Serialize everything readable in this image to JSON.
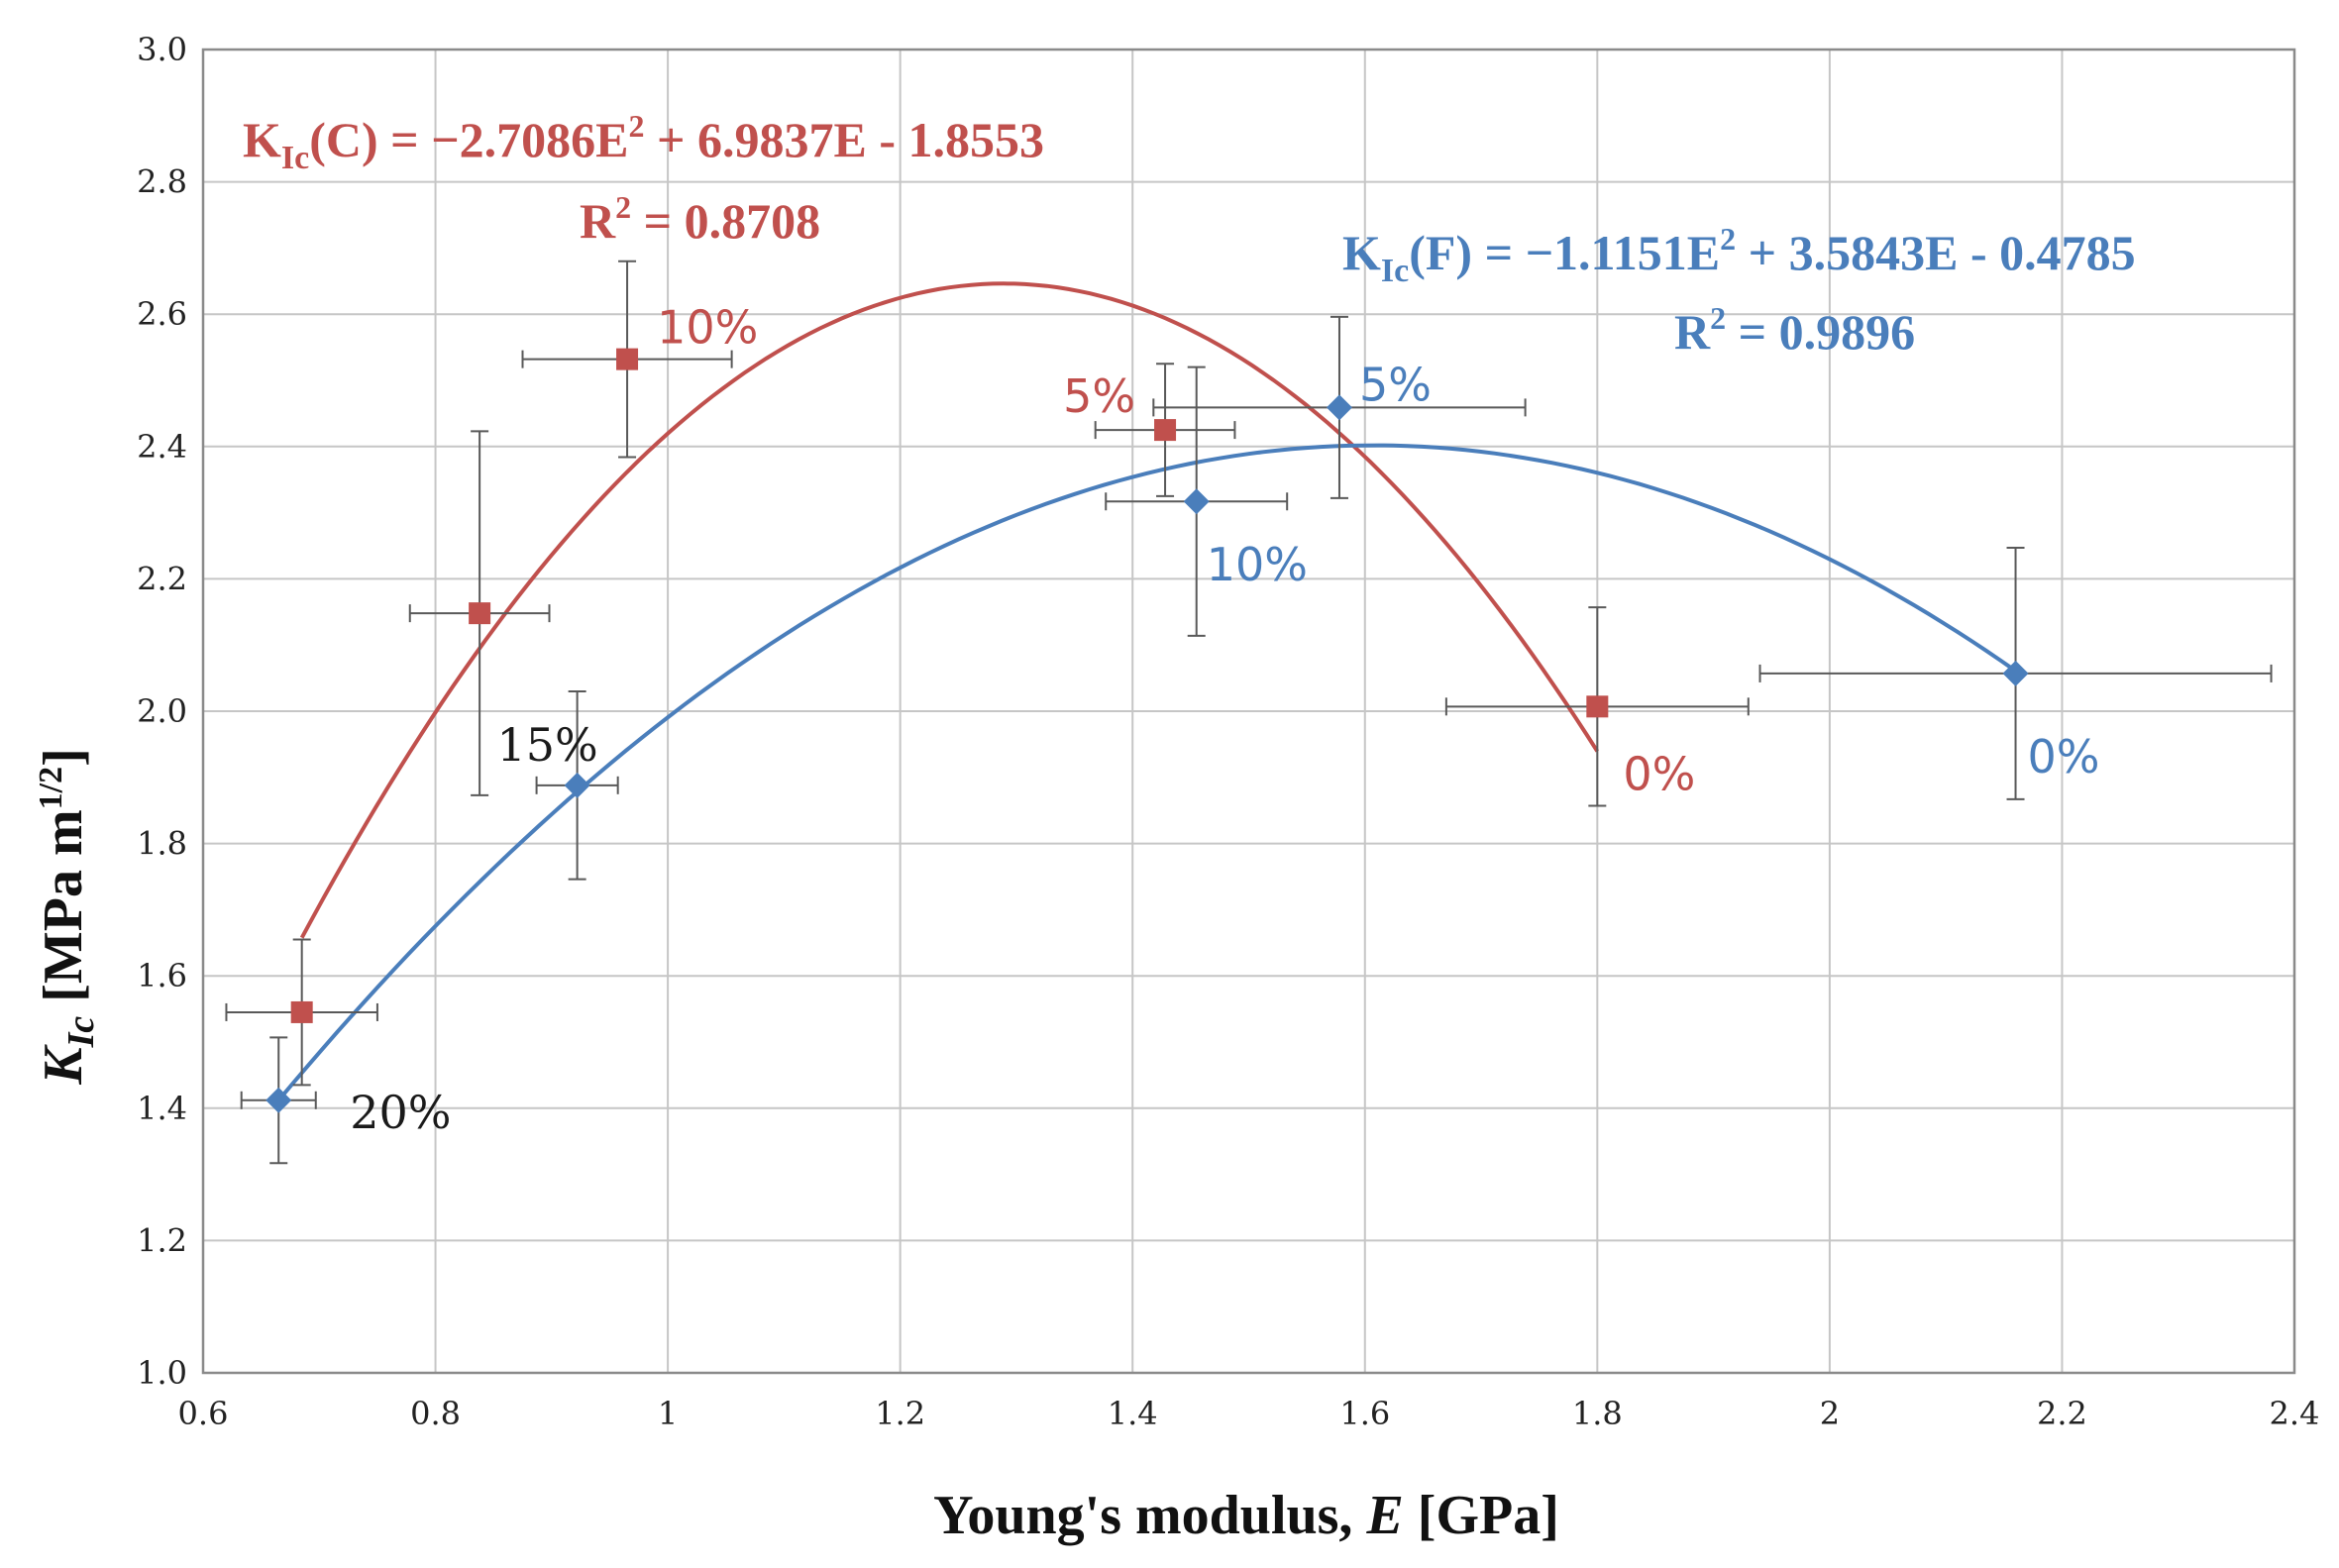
{
  "chart_data": {
    "type": "scatter",
    "xlabel": {
      "main": "Young's modulus, ",
      "symbol": "E",
      "unit": " [GPa]"
    },
    "ylabel": {
      "symbol": "K",
      "sub": "Ic",
      "unit": " [MPa m",
      "sup": "1/2",
      "close": "]"
    },
    "xlim": [
      0.6,
      2.4
    ],
    "ylim": [
      1.0,
      3.0
    ],
    "x_ticks": [
      "0.6",
      "0.8",
      "1",
      "1.2",
      "1.4",
      "1.6",
      "1.8",
      "2",
      "2.2",
      "2.4"
    ],
    "y_ticks": [
      "1.0",
      "1.2",
      "1.4",
      "1.6",
      "1.8",
      "2.0",
      "2.2",
      "2.4",
      "2.6",
      "2.8",
      "3.0"
    ],
    "grid": true,
    "series": [
      {
        "name": "C",
        "color": "#c0504d",
        "marker": "square",
        "points": [
          {
            "x": 0.685,
            "y": 1.545,
            "xerr": 0.065,
            "yerr": 0.11,
            "label": ""
          },
          {
            "x": 0.838,
            "y": 2.148,
            "xerr": 0.06,
            "yerr": 0.275,
            "label": ""
          },
          {
            "x": 0.965,
            "y": 2.532,
            "xerr": 0.09,
            "yerr": 0.148,
            "label": "10%"
          },
          {
            "x": 1.428,
            "y": 2.425,
            "xerr": 0.06,
            "yerr": 0.1,
            "label": "5%"
          },
          {
            "x": 1.8,
            "y": 2.007,
            "xerr": 0.13,
            "yerr": 0.15,
            "label": "0%"
          }
        ],
        "fit": {
          "a": -2.7086,
          "b": 6.9837,
          "c": -1.8553,
          "x_range": [
            0.685,
            1.8
          ]
        },
        "equation": {
          "lhs_main": "K",
          "lhs_sub": "Ic",
          "lhs_tail": "(C) = −2.7086E",
          "sq": "2",
          "rhs": " + 6.9837E - 1.8553"
        },
        "r2": {
          "r": "R",
          "sq": "2",
          "value": " = 0.8708"
        }
      },
      {
        "name": "F",
        "color": "#4a7ebb",
        "marker": "diamond",
        "points": [
          {
            "x": 0.665,
            "y": 1.412,
            "xerr": 0.032,
            "yerr": 0.095,
            "label": "20%"
          },
          {
            "x": 0.922,
            "y": 1.888,
            "xerr": 0.035,
            "yerr": 0.142,
            "label": "15%"
          },
          {
            "x": 1.455,
            "y": 2.317,
            "xerr": 0.078,
            "yerr": 0.203,
            "label": "10%"
          },
          {
            "x": 1.578,
            "y": 2.459,
            "xerr": 0.16,
            "yerr": 0.137,
            "label": "5%"
          },
          {
            "x": 2.16,
            "y": 2.057,
            "xerr": 0.22,
            "yerr": 0.19,
            "label": "0%"
          }
        ],
        "fit": {
          "a": -1.1151,
          "b": 3.5843,
          "c": -0.4785,
          "x_range": [
            0.665,
            2.16
          ]
        },
        "equation": {
          "lhs_main": "K",
          "lhs_sub": "Ic",
          "lhs_tail": "(F) = −1.1151E",
          "sq": "2",
          "rhs": " + 3.5843E - 0.4785"
        },
        "r2": {
          "r": "R",
          "sq": "2",
          "value": " = 0.9896"
        }
      }
    ]
  },
  "colors": {
    "grid": "#c6c6c6",
    "axis": "#8a8a8a",
    "errorbar": "#595959",
    "black_label": "#1a1a1a"
  }
}
